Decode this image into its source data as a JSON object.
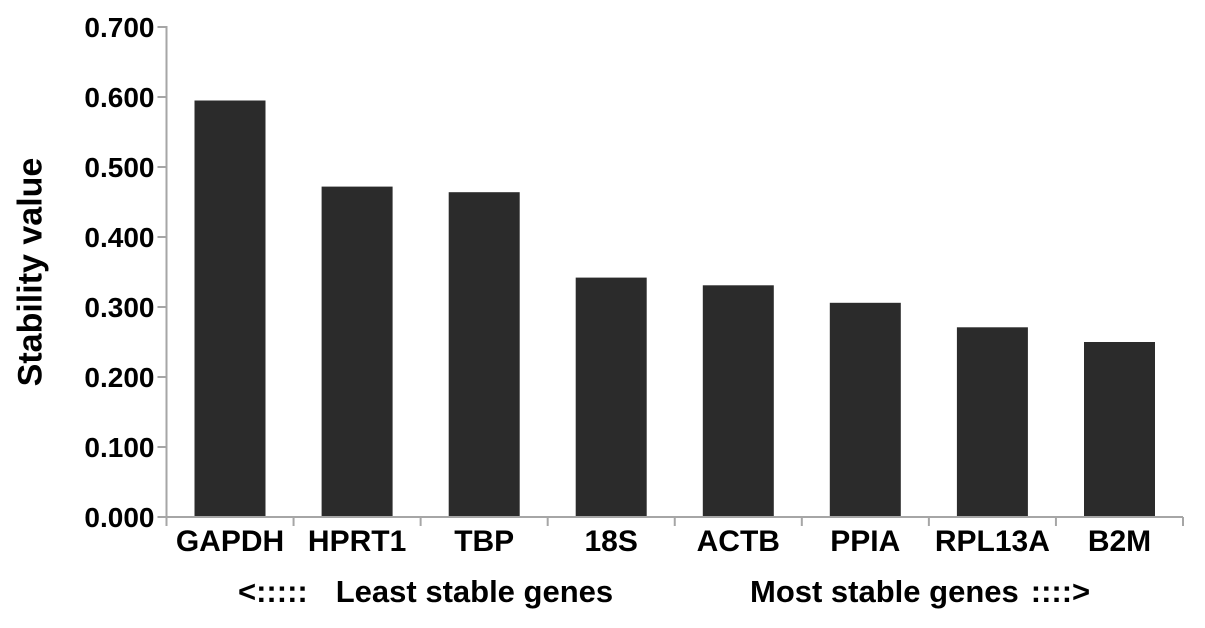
{
  "chart_data": {
    "type": "bar",
    "title": "",
    "ylabel": "Stability value",
    "xlabel": "",
    "categories": [
      "GAPDH",
      "HPRT1",
      "TBP",
      "18S",
      "ACTB",
      "PPIA",
      "RPL13A",
      "B2M"
    ],
    "values": [
      0.595,
      0.472,
      0.464,
      0.342,
      0.331,
      0.306,
      0.271,
      0.25
    ],
    "ylim": [
      0.0,
      0.7
    ],
    "ytick_labels": [
      "0.000",
      "0.100",
      "0.200",
      "0.300",
      "0.400",
      "0.500",
      "0.600",
      "0.700"
    ],
    "grid": "off",
    "legend": "none",
    "bar_color": "#2b2b2b",
    "axis_color": "#a6a6a6",
    "text_color": "#000000",
    "background_color": "#ffffff",
    "annotations": {
      "left": {
        "arrow": "<:::::",
        "label": "Least stable genes"
      },
      "right": {
        "label": "Most stable genes",
        "arrow": "::::>"
      }
    }
  }
}
